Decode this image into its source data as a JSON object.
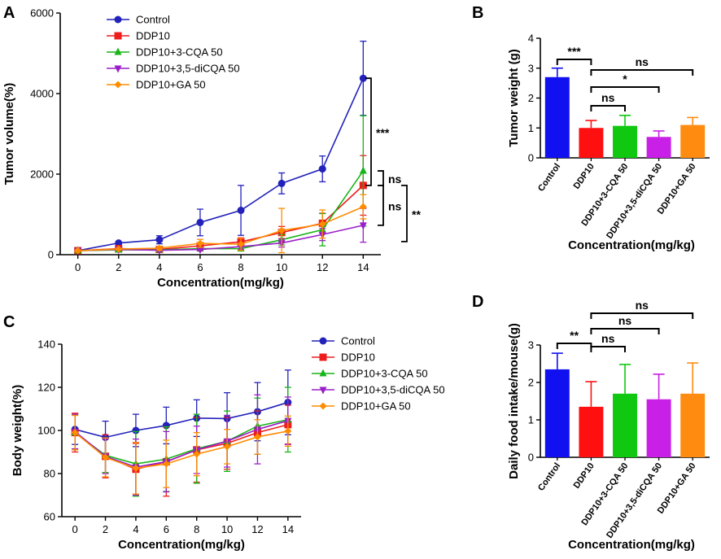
{
  "colors": {
    "Control": "#2222bb",
    "DDP10": "#ee1c1c",
    "DDP10+3-CQA 50": "#18b418",
    "DDP10+3,5-diCQA 50": "#9a1ec8",
    "DDP10+GA 50": "#ff8c00",
    "bar_Control": "#1010f0",
    "bar_DDP10": "#ff1010",
    "bar_3CQA": "#10c810",
    "bar_diCQA": "#c820e6",
    "bar_GA": "#ff8c10"
  },
  "chart_data": [
    {
      "panel": "A",
      "type": "line",
      "xlabel": "Concentration(mg/kg)",
      "ylabel": "Tumor volume(%)",
      "x": [
        0,
        2,
        4,
        6,
        8,
        10,
        12,
        14
      ],
      "xticks": [
        "0",
        "2",
        "4",
        "6",
        "8",
        "10",
        "12",
        "14"
      ],
      "yticks": [
        "0",
        "2000",
        "4000",
        "6000"
      ],
      "ylim": [
        0,
        6000
      ],
      "series": [
        {
          "name": "Control",
          "marker": "circle",
          "values": [
            100,
            290,
            370,
            800,
            1100,
            1770,
            2130,
            4380
          ],
          "err": [
            20,
            30,
            100,
            330,
            620,
            260,
            320,
            920
          ]
        },
        {
          "name": "DDP10",
          "marker": "square",
          "values": [
            100,
            150,
            130,
            220,
            320,
            550,
            780,
            1720
          ],
          "err": [
            15,
            30,
            30,
            70,
            100,
            150,
            250,
            740
          ]
        },
        {
          "name": "DDP10+3-CQA 50",
          "marker": "triangle-up",
          "values": [
            100,
            120,
            120,
            150,
            150,
            370,
            620,
            2080
          ],
          "err": [
            15,
            20,
            20,
            30,
            50,
            130,
            400,
            1370
          ]
        },
        {
          "name": "DDP10+3,5-diCQA 50",
          "marker": "triangle-down",
          "values": [
            100,
            130,
            110,
            130,
            200,
            290,
            500,
            730
          ],
          "err": [
            15,
            20,
            20,
            30,
            70,
            100,
            150,
            420
          ]
        },
        {
          "name": "DDP10+GA 50",
          "marker": "diamond",
          "values": [
            100,
            140,
            160,
            280,
            260,
            600,
            760,
            1190
          ],
          "err": [
            15,
            20,
            50,
            100,
            150,
            550,
            350,
            300
          ]
        }
      ],
      "significance": [
        "***",
        "ns",
        "ns",
        "**"
      ]
    },
    {
      "panel": "B",
      "type": "bar",
      "xlabel": "Concentration(mg/kg)",
      "ylabel": "Tumor weight (g)",
      "categories": [
        "Control",
        "DDP10",
        "DDP10+3-CQA 50",
        "DDP10+3,5-diCQA 50",
        "DDP10+GA 50"
      ],
      "values": [
        2.7,
        1.0,
        1.07,
        0.7,
        1.1
      ],
      "err": [
        0.3,
        0.25,
        0.35,
        0.2,
        0.25
      ],
      "yticks": [
        "0",
        "1",
        "2",
        "3",
        "4"
      ],
      "ylim": [
        0,
        4
      ],
      "significance": [
        "***",
        "ns",
        "*",
        "ns"
      ]
    },
    {
      "panel": "C",
      "type": "line",
      "xlabel": "Concentration(mg/kg)",
      "ylabel": "Body weight(%)",
      "x": [
        0,
        2,
        4,
        6,
        8,
        10,
        12,
        14
      ],
      "xticks": [
        "0",
        "2",
        "4",
        "6",
        "8",
        "10",
        "12",
        "14"
      ],
      "yticks": [
        "60",
        "80",
        "100",
        "120",
        "140"
      ],
      "ylim": [
        60,
        140
      ],
      "series": [
        {
          "name": "Control",
          "marker": "circle",
          "values": [
            100.5,
            96.8,
            100,
            102.3,
            105.7,
            105.5,
            108.7,
            113
          ],
          "err": [
            7,
            7.5,
            7.5,
            8.5,
            8.5,
            12,
            13.5,
            15
          ]
        },
        {
          "name": "DDP10",
          "marker": "square",
          "values": [
            99,
            88,
            82,
            85.5,
            91,
            94,
            99,
            102.7
          ],
          "err": [
            9,
            10,
            12,
            16,
            15,
            12,
            10,
            9
          ]
        },
        {
          "name": "DDP10+3-CQA 50",
          "marker": "triangle-up",
          "values": [
            99,
            88.5,
            84.5,
            86.7,
            91.5,
            95,
            102,
            105
          ],
          "err": [
            8,
            8,
            15,
            15,
            16,
            14,
            13,
            15
          ]
        },
        {
          "name": "DDP10+3,5-diCQA 50",
          "marker": "triangle-down",
          "values": [
            99.5,
            88,
            83,
            85.5,
            91,
            95,
            100.5,
            104.5
          ],
          "err": [
            8,
            8,
            13,
            14,
            11,
            12,
            16,
            11
          ]
        },
        {
          "name": "DDP10+GA 50",
          "marker": "diamond",
          "values": [
            99,
            87.5,
            82.5,
            84.5,
            89,
            92.5,
            97,
            99.7
          ],
          "err": [
            8,
            9,
            12,
            11,
            10,
            8,
            8,
            7
          ]
        }
      ]
    },
    {
      "panel": "D",
      "type": "bar",
      "xlabel": "Concentration(mg/kg)",
      "ylabel": "Daily food intake/mouse(g)",
      "categories": [
        "Control",
        "DDP10",
        "DDP10+3-CQA 50",
        "DDP10+3,5-diCQA 50",
        "DDP10+GA 50"
      ],
      "values": [
        2.35,
        1.35,
        1.7,
        1.55,
        1.7
      ],
      "err": [
        0.43,
        0.67,
        0.78,
        0.67,
        0.82
      ],
      "yticks": [
        "0",
        "1",
        "2",
        "3"
      ],
      "ylim": [
        0,
        3
      ],
      "significance": [
        "**",
        "ns",
        "ns",
        "ns"
      ]
    }
  ],
  "panel_labels": [
    "A",
    "B",
    "C",
    "D"
  ]
}
